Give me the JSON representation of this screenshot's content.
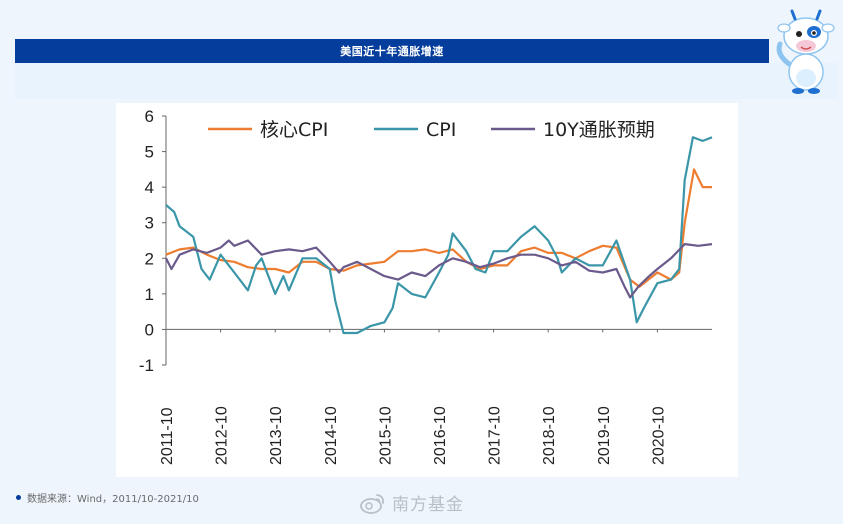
{
  "header": {
    "title": "美国近十年通胀增速"
  },
  "footer": {
    "source": "数据来源：Wind，2011/10-2021/10"
  },
  "watermark": {
    "text": "南方基金"
  },
  "colors": {
    "title_bar": "#053d9c",
    "core_cpi": "#ed7d31",
    "cpi": "#3a96a8",
    "expectation": "#6b5a8c"
  },
  "chart_data": {
    "type": "line",
    "title": "",
    "xlabel": "",
    "ylabel": "",
    "ylim": [
      -1,
      6
    ],
    "yticks": [
      -1,
      0,
      1,
      2,
      3,
      4,
      5,
      6
    ],
    "x_tick_labels": [
      "2011-10",
      "2012-10",
      "2013-10",
      "2014-10",
      "2015-10",
      "2016-10",
      "2017-10",
      "2018-10",
      "2019-10",
      "2020-10"
    ],
    "x_range": [
      2011.75,
      2021.75
    ],
    "grid": false,
    "legend": "top",
    "series": [
      {
        "name": "核心CPI",
        "color": "#ed7d31",
        "points": [
          [
            2011.75,
            2.1
          ],
          [
            2012.0,
            2.25
          ],
          [
            2012.25,
            2.3
          ],
          [
            2012.5,
            2.1
          ],
          [
            2012.75,
            1.95
          ],
          [
            2013.0,
            1.9
          ],
          [
            2013.25,
            1.75
          ],
          [
            2013.5,
            1.7
          ],
          [
            2013.75,
            1.7
          ],
          [
            2014.0,
            1.6
          ],
          [
            2014.25,
            1.9
          ],
          [
            2014.5,
            1.9
          ],
          [
            2014.75,
            1.7
          ],
          [
            2015.0,
            1.65
          ],
          [
            2015.25,
            1.8
          ],
          [
            2015.5,
            1.85
          ],
          [
            2015.75,
            1.9
          ],
          [
            2016.0,
            2.2
          ],
          [
            2016.25,
            2.2
          ],
          [
            2016.5,
            2.25
          ],
          [
            2016.75,
            2.15
          ],
          [
            2017.0,
            2.25
          ],
          [
            2017.25,
            1.9
          ],
          [
            2017.5,
            1.7
          ],
          [
            2017.75,
            1.8
          ],
          [
            2018.0,
            1.8
          ],
          [
            2018.25,
            2.2
          ],
          [
            2018.5,
            2.3
          ],
          [
            2018.75,
            2.15
          ],
          [
            2019.0,
            2.15
          ],
          [
            2019.25,
            2.0
          ],
          [
            2019.5,
            2.2
          ],
          [
            2019.75,
            2.35
          ],
          [
            2020.0,
            2.3
          ],
          [
            2020.25,
            1.4
          ],
          [
            2020.42,
            1.2
          ],
          [
            2020.75,
            1.6
          ],
          [
            2021.0,
            1.4
          ],
          [
            2021.15,
            1.6
          ],
          [
            2021.25,
            3.0
          ],
          [
            2021.42,
            4.5
          ],
          [
            2021.58,
            4.0
          ],
          [
            2021.75,
            4.0
          ]
        ]
      },
      {
        "name": "CPI",
        "color": "#3a96a8",
        "points": [
          [
            2011.75,
            3.5
          ],
          [
            2011.9,
            3.3
          ],
          [
            2012.0,
            2.9
          ],
          [
            2012.25,
            2.6
          ],
          [
            2012.4,
            1.7
          ],
          [
            2012.55,
            1.4
          ],
          [
            2012.75,
            2.1
          ],
          [
            2012.9,
            1.8
          ],
          [
            2013.0,
            1.6
          ],
          [
            2013.25,
            1.1
          ],
          [
            2013.4,
            1.8
          ],
          [
            2013.5,
            2.0
          ],
          [
            2013.75,
            1.0
          ],
          [
            2013.9,
            1.5
          ],
          [
            2014.0,
            1.1
          ],
          [
            2014.25,
            2.0
          ],
          [
            2014.5,
            2.0
          ],
          [
            2014.75,
            1.7
          ],
          [
            2014.85,
            0.8
          ],
          [
            2015.0,
            -0.1
          ],
          [
            2015.25,
            -0.1
          ],
          [
            2015.5,
            0.1
          ],
          [
            2015.75,
            0.2
          ],
          [
            2015.9,
            0.6
          ],
          [
            2016.0,
            1.3
          ],
          [
            2016.25,
            1.0
          ],
          [
            2016.5,
            0.9
          ],
          [
            2016.75,
            1.6
          ],
          [
            2016.92,
            2.1
          ],
          [
            2017.0,
            2.7
          ],
          [
            2017.25,
            2.2
          ],
          [
            2017.42,
            1.7
          ],
          [
            2017.6,
            1.6
          ],
          [
            2017.75,
            2.2
          ],
          [
            2018.0,
            2.2
          ],
          [
            2018.25,
            2.6
          ],
          [
            2018.5,
            2.9
          ],
          [
            2018.75,
            2.5
          ],
          [
            2018.92,
            2.0
          ],
          [
            2019.0,
            1.6
          ],
          [
            2019.25,
            2.0
          ],
          [
            2019.5,
            1.8
          ],
          [
            2019.75,
            1.8
          ],
          [
            2020.0,
            2.5
          ],
          [
            2020.25,
            1.4
          ],
          [
            2020.37,
            0.2
          ],
          [
            2020.5,
            0.6
          ],
          [
            2020.75,
            1.3
          ],
          [
            2021.0,
            1.4
          ],
          [
            2021.15,
            1.7
          ],
          [
            2021.25,
            4.2
          ],
          [
            2021.4,
            5.4
          ],
          [
            2021.58,
            5.3
          ],
          [
            2021.75,
            5.4
          ]
        ]
      },
      {
        "name": "10Y通胀预期",
        "color": "#6b5a8c",
        "points": [
          [
            2011.75,
            2.0
          ],
          [
            2011.85,
            1.7
          ],
          [
            2012.0,
            2.1
          ],
          [
            2012.25,
            2.25
          ],
          [
            2012.5,
            2.15
          ],
          [
            2012.75,
            2.3
          ],
          [
            2012.9,
            2.5
          ],
          [
            2013.0,
            2.35
          ],
          [
            2013.25,
            2.5
          ],
          [
            2013.5,
            2.1
          ],
          [
            2013.75,
            2.2
          ],
          [
            2014.0,
            2.25
          ],
          [
            2014.25,
            2.2
          ],
          [
            2014.5,
            2.3
          ],
          [
            2014.75,
            1.9
          ],
          [
            2014.92,
            1.6
          ],
          [
            2015.0,
            1.75
          ],
          [
            2015.25,
            1.9
          ],
          [
            2015.5,
            1.7
          ],
          [
            2015.75,
            1.5
          ],
          [
            2016.0,
            1.4
          ],
          [
            2016.25,
            1.6
          ],
          [
            2016.5,
            1.5
          ],
          [
            2016.75,
            1.8
          ],
          [
            2017.0,
            2.0
          ],
          [
            2017.25,
            1.9
          ],
          [
            2017.5,
            1.75
          ],
          [
            2017.75,
            1.85
          ],
          [
            2018.0,
            2.0
          ],
          [
            2018.25,
            2.1
          ],
          [
            2018.5,
            2.1
          ],
          [
            2018.75,
            2.0
          ],
          [
            2019.0,
            1.8
          ],
          [
            2019.25,
            1.9
          ],
          [
            2019.5,
            1.65
          ],
          [
            2019.75,
            1.6
          ],
          [
            2020.0,
            1.7
          ],
          [
            2020.15,
            1.2
          ],
          [
            2020.25,
            0.9
          ],
          [
            2020.4,
            1.2
          ],
          [
            2020.6,
            1.5
          ],
          [
            2020.75,
            1.7
          ],
          [
            2021.0,
            2.0
          ],
          [
            2021.25,
            2.4
          ],
          [
            2021.5,
            2.35
          ],
          [
            2021.75,
            2.4
          ]
        ]
      }
    ]
  }
}
